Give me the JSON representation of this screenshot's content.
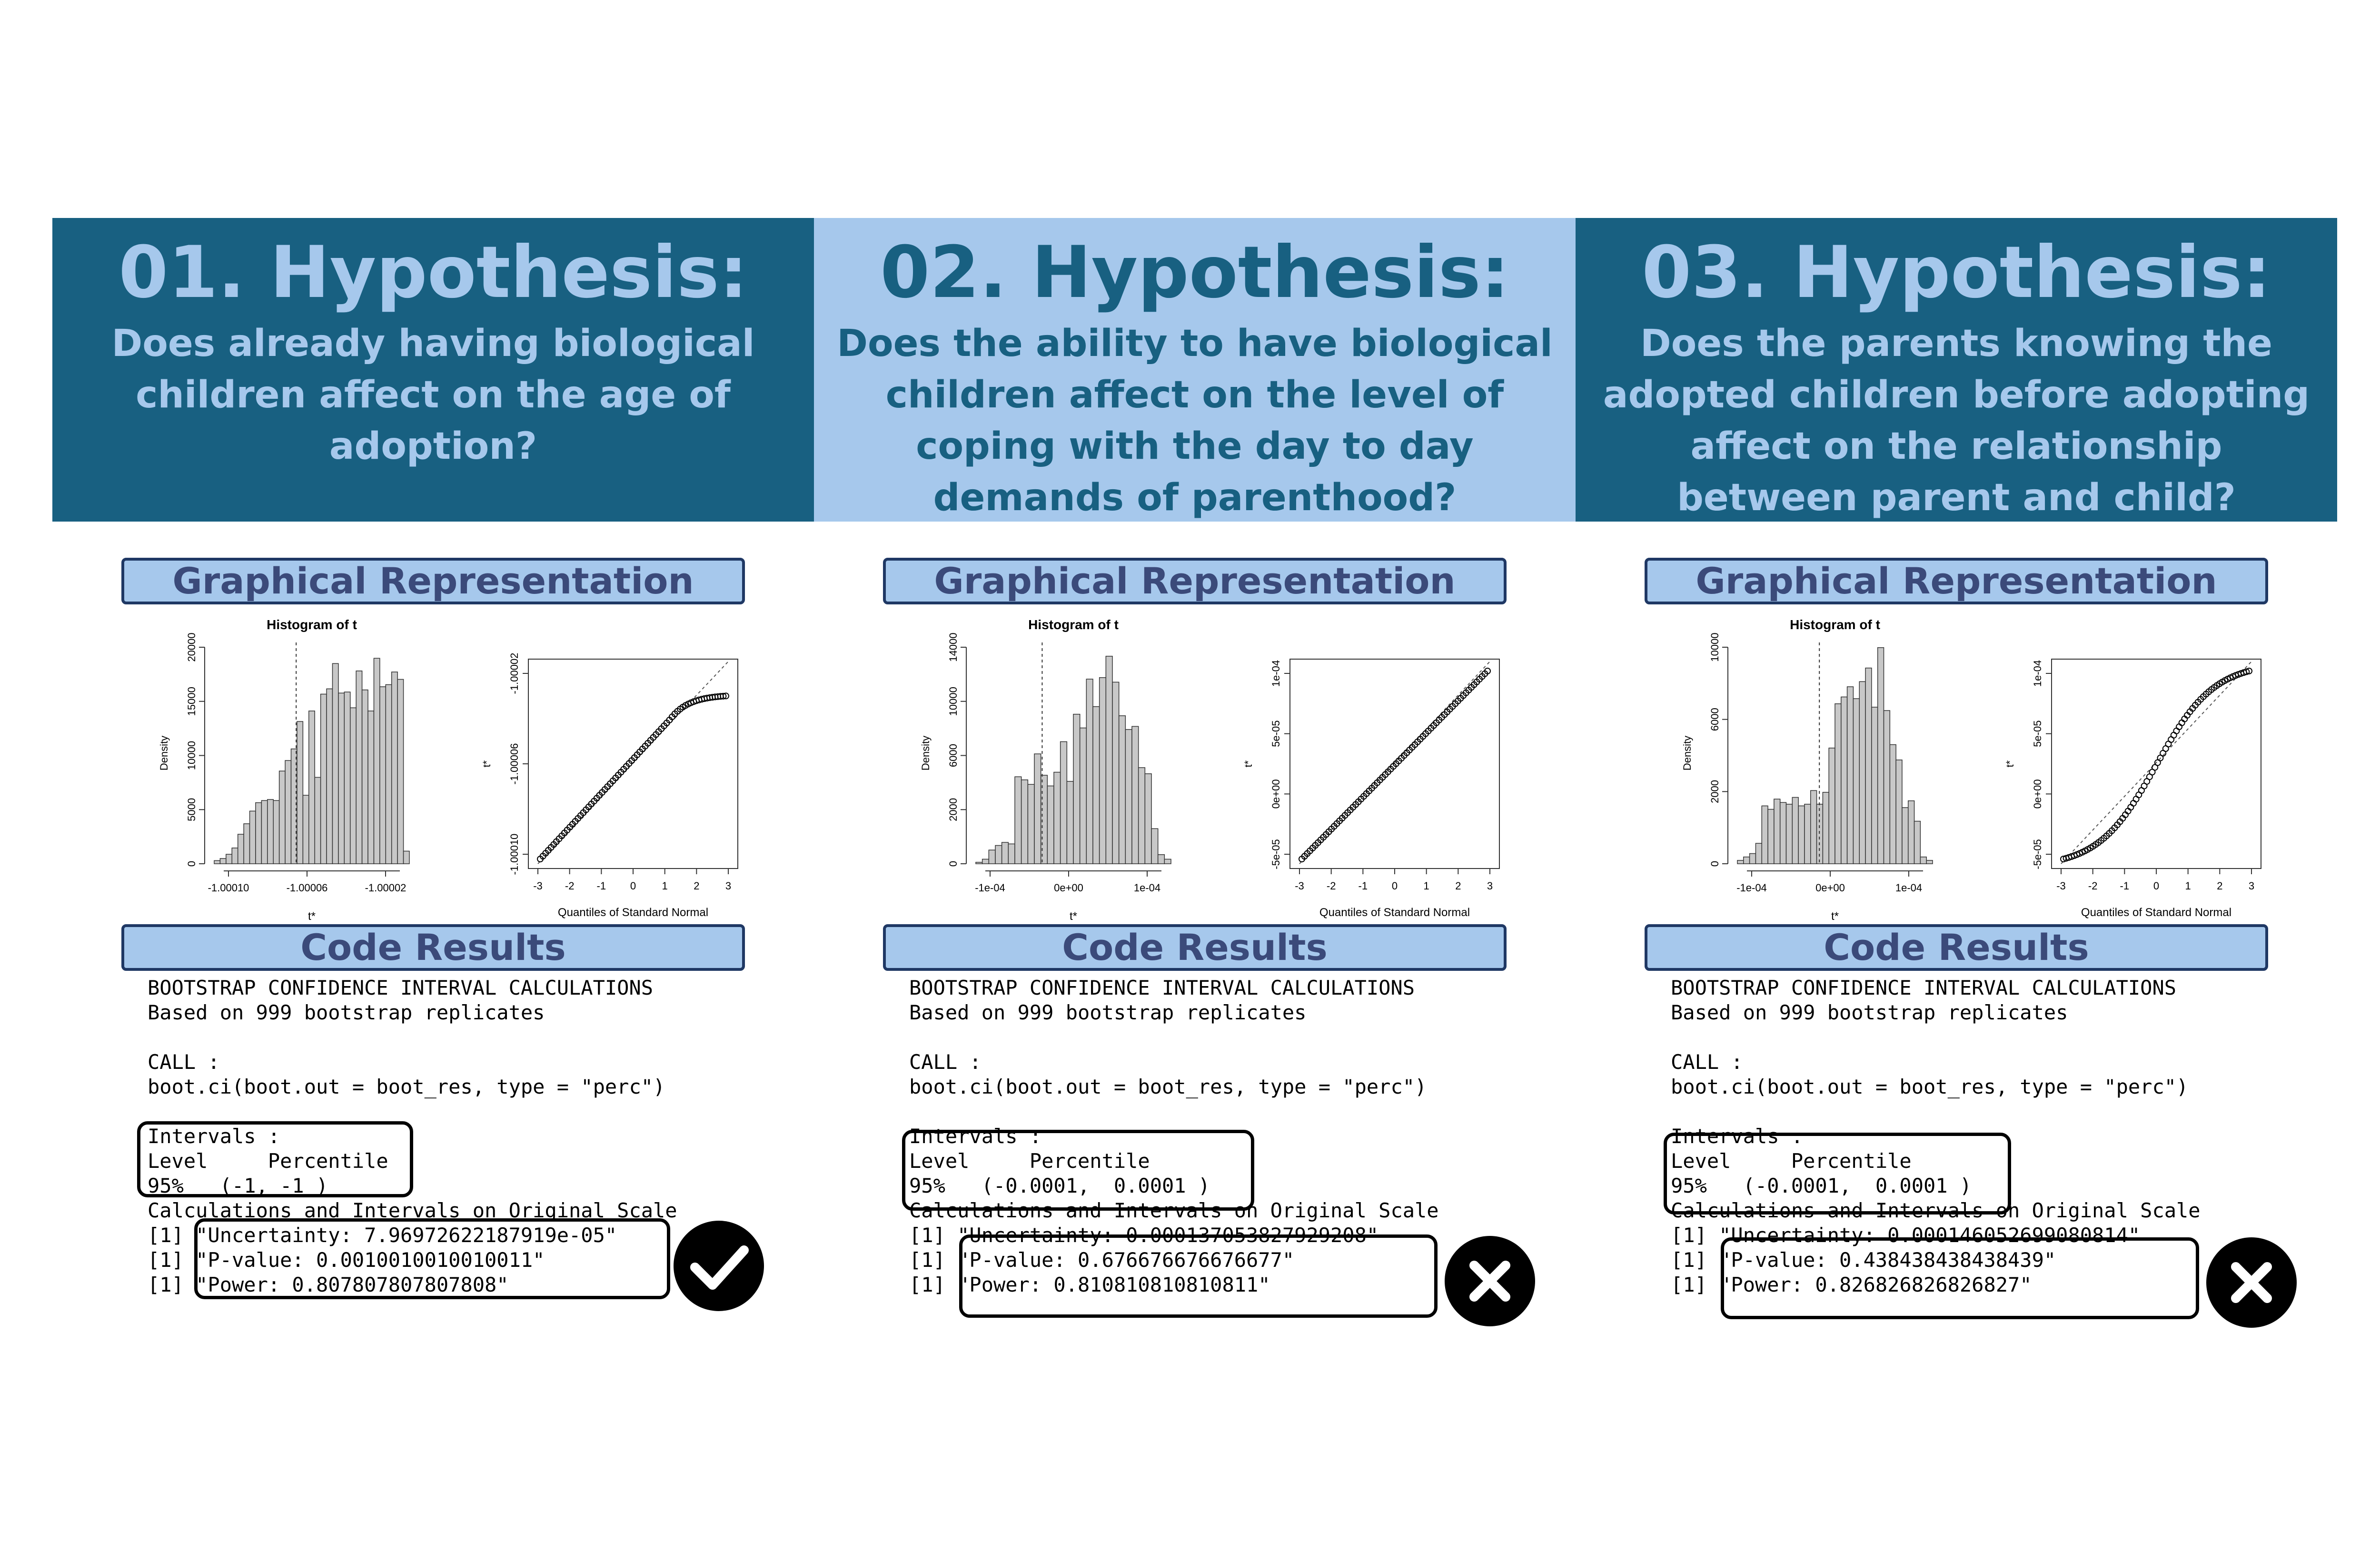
{
  "panels": [
    {
      "title": "01. Hypothesis:",
      "question": "Does already having biological children affect on the age of adoption?",
      "graph_label": "Graphical Representation",
      "code_label": "Code Results",
      "verdict": "check-icon",
      "code_lines": [
        "BOOTSTRAP CONFIDENCE INTERVAL CALCULATIONS",
        "Based on 999 bootstrap replicates",
        "",
        "CALL :",
        "boot.ci(boot.out = boot_res, type = \"perc\")",
        "",
        "Intervals :",
        "Level     Percentile",
        "95%   (-1, -1 )",
        "Calculations and Intervals on Original Scale",
        "[1] \"Uncertainty: 7.96972622187919e-05\"",
        "[1] \"P-value: 0.0010010010010011\"",
        "[1] \"Power: 0.807807807807808\""
      ]
    },
    {
      "title": "02. Hypothesis:",
      "question": "Does the ability to have biological children affect on the level of coping with the day to day demands of parenthood?",
      "graph_label": "Graphical Representation",
      "code_label": "Code Results",
      "verdict": "cross-icon",
      "code_lines": [
        "BOOTSTRAP CONFIDENCE INTERVAL CALCULATIONS",
        "Based on 999 bootstrap replicates",
        "",
        "CALL :",
        "boot.ci(boot.out = boot_res, type = \"perc\")",
        "",
        "Intervals :",
        "Level     Percentile",
        "95%   (-0.0001,  0.0001 )",
        "Calculations and Intervals on Original Scale",
        "[1] \"Uncertainty: 0.000137053827929208\"",
        "[1] \"P-value: 0.676676676676677\"",
        "[1] \"Power: 0.810810810810811\""
      ]
    },
    {
      "title": "03. Hypothesis:",
      "question": "Does the parents knowing the adopted children before adopting affect on the relationship between parent and child?",
      "graph_label": "Graphical Representation",
      "code_label": "Code Results",
      "verdict": "cross-icon",
      "code_lines": [
        "BOOTSTRAP CONFIDENCE INTERVAL CALCULATIONS",
        "Based on 999 bootstrap replicates",
        "",
        "CALL :",
        "boot.ci(boot.out = boot_res, type = \"perc\")",
        "",
        "Intervals :",
        "Level     Percentile",
        "95%   (-0.0001,  0.0001 )",
        "Calculations and Intervals on Original Scale",
        "[1] \"Uncertainty: 0.000146052699080814\"",
        "[1] \"P-value: 0.438438438438439\"",
        "[1] \"Power: 0.826826826826827\""
      ]
    }
  ],
  "colors": {
    "dark_header": "#186081",
    "light_header": "#a6c8ec",
    "label_text": "#3b4a7a",
    "bar_fill": "#c8c8c8"
  },
  "chart_data": [
    {
      "type": "bar",
      "title": "Histogram of t",
      "xlabel": "t*",
      "ylabel": "Density",
      "x_ticks": [
        "-1.00010",
        "-1.00006",
        "-1.00002"
      ],
      "y_ticks": [
        "0",
        "5000",
        "10000",
        "15000",
        "20000"
      ],
      "ylim": [
        0,
        21000
      ],
      "reference_line_fraction": 0.42,
      "values": [
        300,
        500,
        900,
        1500,
        2800,
        3800,
        5000,
        5800,
        6000,
        6100,
        6000,
        8800,
        9800,
        10900,
        13500,
        6500,
        14500,
        8200,
        16100,
        16600,
        19000,
        16200,
        16300,
        14800,
        18300,
        16500,
        14500,
        19500,
        16800,
        17000,
        18200,
        17500,
        1200
      ]
    },
    {
      "type": "scatter",
      "title": "",
      "xlabel": "Quantiles of Standard Normal",
      "ylabel": "t*",
      "x_ticks": [
        "-3",
        "-2",
        "-1",
        "0",
        "1",
        "2",
        "3"
      ],
      "y_ticks": [
        "-1.00010",
        "-1.00006",
        "-1.00002"
      ],
      "shape": "flattening-top"
    },
    {
      "type": "bar",
      "title": "Histogram of t",
      "xlabel": "t*",
      "ylabel": "Density",
      "x_ticks": [
        "-1e-04",
        "0e+00",
        "1e-04"
      ],
      "y_ticks": [
        "0",
        "2000",
        "6000",
        "10000",
        "14000"
      ],
      "ylim": [
        0,
        14500
      ],
      "reference_line_fraction": 0.34,
      "values": [
        100,
        300,
        900,
        1200,
        1400,
        1300,
        5700,
        5500,
        5200,
        7200,
        5800,
        5100,
        6000,
        8000,
        5400,
        9800,
        8900,
        12100,
        10300,
        12200,
        13600,
        11900,
        9700,
        8800,
        9000,
        6300,
        5900,
        2300,
        600,
        300
      ]
    },
    {
      "type": "scatter",
      "title": "",
      "xlabel": "Quantiles of Standard Normal",
      "ylabel": "t*",
      "x_ticks": [
        "-3",
        "-2",
        "-1",
        "0",
        "1",
        "2",
        "3"
      ],
      "y_ticks": [
        "-5e-05",
        "0e+00",
        "5e-05",
        "1e-04"
      ],
      "shape": "straight"
    },
    {
      "type": "bar",
      "title": "Histogram of t",
      "xlabel": "t*",
      "ylabel": "Density",
      "x_ticks": [
        "-1e-04",
        "0e+00",
        "1e-04"
      ],
      "y_ticks": [
        "0",
        "2000",
        "6000",
        "10000"
      ],
      "ylim": [
        0,
        13000
      ],
      "reference_line_fraction": 0.42,
      "values": [
        200,
        400,
        600,
        1200,
        3400,
        3200,
        3800,
        3600,
        3500,
        3900,
        3400,
        3500,
        4300,
        3500,
        4200,
        6800,
        9400,
        9800,
        10400,
        9700,
        10700,
        11500,
        9200,
        12700,
        9000,
        7000,
        6100,
        3300,
        3700,
        2500,
        400,
        200
      ]
    },
    {
      "type": "scatter",
      "title": "",
      "xlabel": "Quantiles of Standard Normal",
      "ylabel": "t*",
      "x_ticks": [
        "-3",
        "-2",
        "-1",
        "0",
        "1",
        "2",
        "3"
      ],
      "y_ticks": [
        "-5e-05",
        "0e+00",
        "5e-05",
        "1e-04"
      ],
      "shape": "s-curve"
    }
  ]
}
